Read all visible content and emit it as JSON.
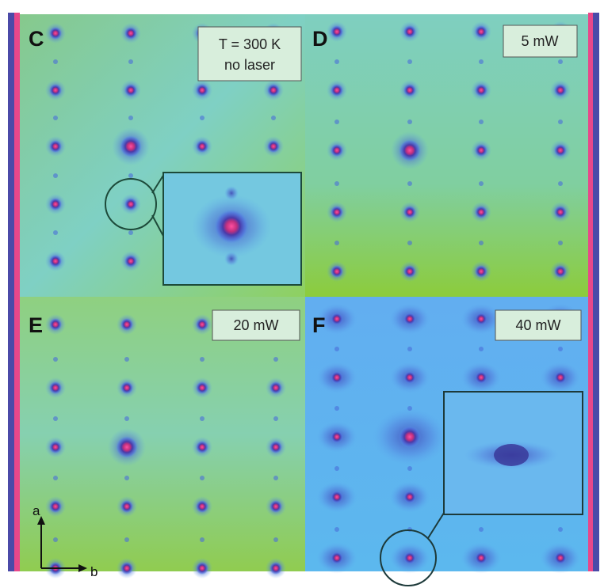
{
  "panels": [
    {
      "label": "C",
      "lines": [
        "T = 300 K",
        "no laser"
      ]
    },
    {
      "label": "D",
      "lines": [
        "5 mW"
      ]
    },
    {
      "label": "E",
      "lines": [
        "20 mW"
      ]
    },
    {
      "label": "F",
      "lines": [
        "40 mW"
      ]
    }
  ],
  "axes": {
    "a": "a",
    "b": "b"
  }
}
